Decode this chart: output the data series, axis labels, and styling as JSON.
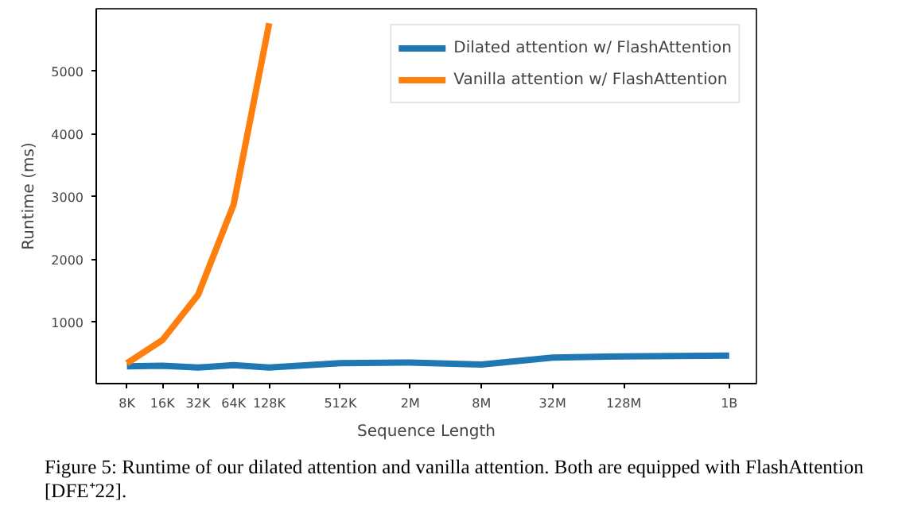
{
  "chart_data": {
    "type": "line",
    "xlabel": "Sequence Length",
    "ylabel": "Runtime (ms)",
    "log": "x",
    "x": [
      8000,
      16000,
      32000,
      64000,
      128000,
      512000,
      2000000,
      8000000,
      32000000,
      128000000,
      1000000000
    ],
    "series": [
      {
        "name": "Dilated attention w/ FlashAttention",
        "color": "#1f77b4",
        "values": [
          300,
          310,
          280,
          320,
          280,
          350,
          360,
          330,
          440,
          460,
          470
        ]
      },
      {
        "name": "Vanilla attention w/ FlashAttention",
        "color": "#ff7f0e",
        "x": [
          8000,
          16000,
          32000,
          64000,
          128000
        ],
        "values": [
          350,
          720,
          1440,
          2880,
          5770
        ]
      }
    ],
    "xlim": [
      4400,
      1700000000
    ],
    "ylim": [
      25,
      6000
    ],
    "xticks": [
      {
        "value": 8000,
        "label": "8K"
      },
      {
        "value": 16000,
        "label": "16K"
      },
      {
        "value": 32000,
        "label": "32K"
      },
      {
        "value": 64000,
        "label": "64K"
      },
      {
        "value": 128000,
        "label": "128K"
      },
      {
        "value": 512000,
        "label": "512K"
      },
      {
        "value": 2000000,
        "label": "2M"
      },
      {
        "value": 8000000,
        "label": "8M"
      },
      {
        "value": 32000000,
        "label": "32M"
      },
      {
        "value": 128000000,
        "label": "128M"
      },
      {
        "value": 1000000000,
        "label": "1B"
      }
    ],
    "yticks": [
      1000,
      2000,
      3000,
      4000,
      5000
    ],
    "grid": false,
    "legend": "top right",
    "marker": "none",
    "line_style": "solid",
    "annotations": [
      "Figure 5: Runtime of our dilated attention and vanilla attention. Both are equipped with FlashAttention [DFE⁺22]."
    ]
  }
}
